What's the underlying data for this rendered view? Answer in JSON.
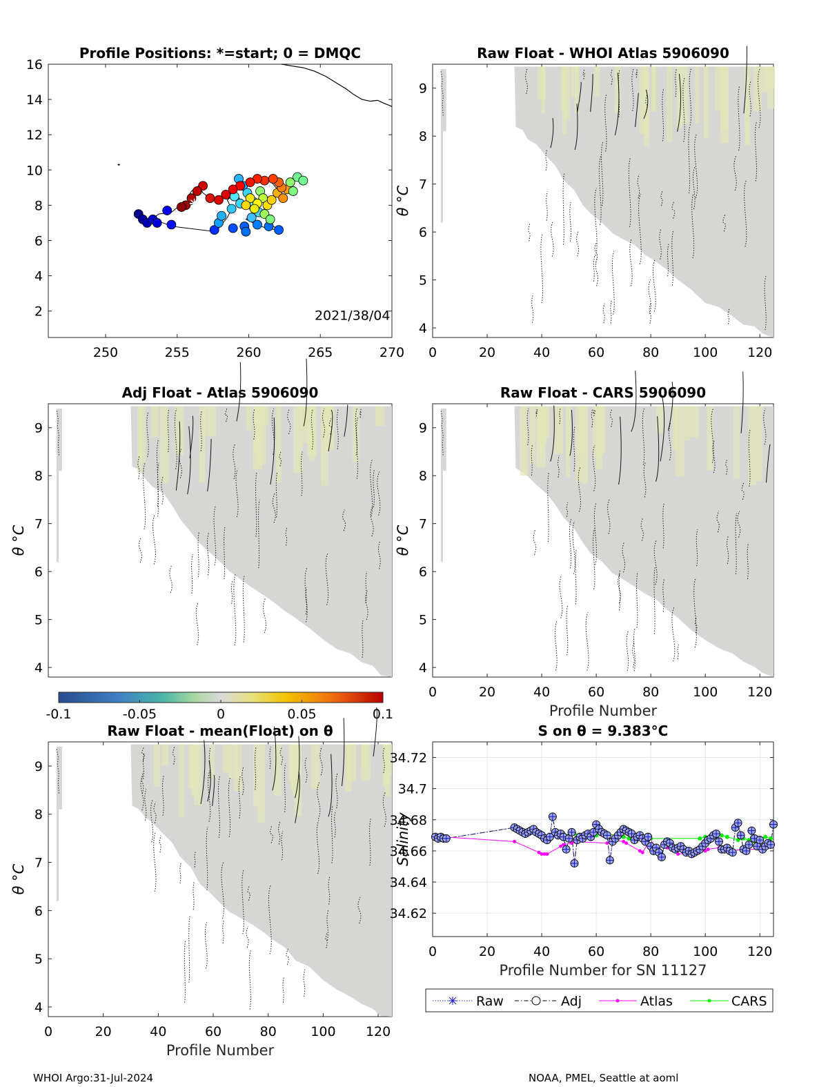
{
  "figure": {
    "footer_left": "WHOI Argo:31-Jul-2024",
    "footer_right": "NOAA, PMEL, Seattle at aoml"
  },
  "colorbar": {
    "min": -0.1,
    "max": 0.1,
    "ticks": [
      -0.1,
      -0.05,
      0,
      0.05,
      0.1
    ],
    "tick_labels": [
      "-0.1",
      "-0.05",
      "0",
      "0.05",
      "0.1"
    ]
  },
  "chart_data": [
    {
      "id": "positions",
      "type": "scatter",
      "title": "Profile Positions: *=start; 0 = DMQC",
      "xlim": [
        246,
        270
      ],
      "ylim": [
        0.5,
        16
      ],
      "x_ticks": [
        250,
        255,
        260,
        265,
        270
      ],
      "y_ticks": [
        2,
        4,
        6,
        8,
        10,
        12,
        14,
        16
      ],
      "annotation": "2021/38/04",
      "coastline": [
        [
          268.7,
          0.6
        ],
        [
          269,
          0.7
        ]
      ],
      "coastline_top": [
        [
          262.3,
          16
        ],
        [
          263.0,
          15.9
        ],
        [
          263.8,
          15.8
        ],
        [
          264.6,
          15.6
        ],
        [
          265.4,
          15.3
        ],
        [
          266.2,
          14.9
        ],
        [
          266.8,
          14.6
        ],
        [
          267.3,
          14.3
        ],
        [
          267.9,
          14.0
        ],
        [
          268.5,
          13.9
        ],
        [
          269.0,
          13.95
        ],
        [
          269.4,
          13.8
        ],
        [
          270,
          13.6
        ]
      ],
      "track": [
        [
          256.2,
          8.1
        ],
        [
          255.6,
          7.9
        ],
        [
          255.2,
          8.0
        ],
        [
          254.6,
          7.6
        ],
        [
          253.7,
          7.5
        ],
        [
          253.4,
          7.3
        ],
        [
          252.9,
          7.1
        ],
        [
          252.5,
          7.4
        ],
        [
          252.8,
          7.0
        ],
        [
          253.3,
          7.2
        ],
        [
          254.7,
          6.8
        ],
        [
          257.7,
          6.5
        ],
        [
          258.1,
          6.9
        ],
        [
          258.5,
          7.3
        ],
        [
          258.8,
          7.8
        ],
        [
          258.5,
          8.3
        ],
        [
          259.1,
          8.7
        ],
        [
          259.5,
          8.2
        ],
        [
          259.9,
          7.9
        ],
        [
          260.3,
          7.6
        ],
        [
          259.8,
          7.2
        ],
        [
          260.6,
          6.9
        ],
        [
          261.2,
          6.7
        ],
        [
          262.0,
          6.6
        ],
        [
          261.5,
          7.0
        ],
        [
          260.9,
          7.5
        ],
        [
          261.2,
          8.0
        ],
        [
          261.6,
          8.4
        ],
        [
          262.1,
          8.7
        ],
        [
          262.6,
          9.0
        ],
        [
          263.1,
          9.4
        ],
        [
          263.3,
          9.6
        ],
        [
          262.9,
          9.1
        ],
        [
          262.4,
          8.8
        ],
        [
          261.9,
          9.0
        ],
        [
          261.6,
          9.3
        ],
        [
          261.1,
          9.5
        ],
        [
          260.4,
          9.4
        ],
        [
          259.8,
          9.2
        ],
        [
          259.2,
          9.0
        ],
        [
          258.7,
          8.9
        ],
        [
          258.3,
          8.6
        ],
        [
          257.8,
          8.3
        ],
        [
          257.3,
          8.4
        ],
        [
          256.8,
          8.7
        ],
        [
          256.5,
          9.1
        ],
        [
          256.0,
          8.8
        ],
        [
          255.7,
          8.4
        ],
        [
          256.1,
          8.1
        ]
      ],
      "colored_points": [
        {
          "x": 252.3,
          "y": 7.5,
          "c": "#00008f"
        },
        {
          "x": 252.6,
          "y": 7.2,
          "c": "#0000a6"
        },
        {
          "x": 252.9,
          "y": 7.0,
          "c": "#0000bb"
        },
        {
          "x": 253.3,
          "y": 7.2,
          "c": "#0000cf"
        },
        {
          "x": 253.6,
          "y": 7.0,
          "c": "#0000dd"
        },
        {
          "x": 254.3,
          "y": 7.7,
          "c": "#0000ee"
        },
        {
          "x": 254.6,
          "y": 6.9,
          "c": "#0010ff"
        },
        {
          "x": 257.6,
          "y": 6.6,
          "c": "#0030ff"
        },
        {
          "x": 258.9,
          "y": 6.7,
          "c": "#0050ff"
        },
        {
          "x": 259.7,
          "y": 6.8,
          "c": "#0060ff"
        },
        {
          "x": 259.8,
          "y": 6.5,
          "c": "#0070ff"
        },
        {
          "x": 260.6,
          "y": 6.9,
          "c": "#0080ff"
        },
        {
          "x": 261.4,
          "y": 6.8,
          "c": "#0070ff"
        },
        {
          "x": 262.1,
          "y": 6.6,
          "c": "#0060ff"
        },
        {
          "x": 257.9,
          "y": 7.0,
          "c": "#10a0ff"
        },
        {
          "x": 258.1,
          "y": 7.4,
          "c": "#20b0ff"
        },
        {
          "x": 258.8,
          "y": 7.8,
          "c": "#30c8ff"
        },
        {
          "x": 259.4,
          "y": 8.1,
          "c": "#40d8ff"
        },
        {
          "x": 259.0,
          "y": 8.5,
          "c": "#50e8ff"
        },
        {
          "x": 259.3,
          "y": 9.5,
          "c": "#30b0ff"
        },
        {
          "x": 259.6,
          "y": 9.1,
          "c": "#20a0ff"
        },
        {
          "x": 259.9,
          "y": 8.7,
          "c": "#40d0ff"
        },
        {
          "x": 260.3,
          "y": 8.2,
          "c": "#60f0ff"
        },
        {
          "x": 260.7,
          "y": 7.6,
          "c": "#50d8ff"
        },
        {
          "x": 260.2,
          "y": 7.3,
          "c": "#40c0ff"
        },
        {
          "x": 260.8,
          "y": 8.8,
          "c": "#90ff70"
        },
        {
          "x": 261.0,
          "y": 8.4,
          "c": "#c0ff40"
        },
        {
          "x": 260.6,
          "y": 8.1,
          "c": "#ffff00"
        },
        {
          "x": 260.1,
          "y": 8.4,
          "c": "#ffe800"
        },
        {
          "x": 259.8,
          "y": 8.0,
          "c": "#ffd800"
        },
        {
          "x": 260.4,
          "y": 7.8,
          "c": "#f0f000"
        },
        {
          "x": 261.3,
          "y": 8.0,
          "c": "#ffe000"
        },
        {
          "x": 261.6,
          "y": 8.3,
          "c": "#ffd000"
        },
        {
          "x": 261.1,
          "y": 7.5,
          "c": "#a0ff60"
        },
        {
          "x": 261.5,
          "y": 7.2,
          "c": "#80ff80"
        },
        {
          "x": 262.0,
          "y": 8.7,
          "c": "#ffb000"
        },
        {
          "x": 262.4,
          "y": 8.4,
          "c": "#ff9000"
        },
        {
          "x": 262.7,
          "y": 8.9,
          "c": "#ffa000"
        },
        {
          "x": 262.3,
          "y": 9.0,
          "c": "#ff8000"
        },
        {
          "x": 262.9,
          "y": 9.3,
          "c": "#90ff70"
        },
        {
          "x": 263.4,
          "y": 9.6,
          "c": "#70ff90"
        },
        {
          "x": 263.1,
          "y": 8.8,
          "c": "#80ff80"
        },
        {
          "x": 262.1,
          "y": 9.3,
          "c": "#ff6000"
        },
        {
          "x": 261.7,
          "y": 9.5,
          "c": "#ff4000"
        },
        {
          "x": 261.1,
          "y": 9.4,
          "c": "#ff3000"
        },
        {
          "x": 260.6,
          "y": 9.5,
          "c": "#ff2000"
        },
        {
          "x": 260.1,
          "y": 9.3,
          "c": "#ff1000"
        },
        {
          "x": 259.4,
          "y": 9.1,
          "c": "#ff0000"
        },
        {
          "x": 258.9,
          "y": 8.9,
          "c": "#ee0000"
        },
        {
          "x": 258.4,
          "y": 8.6,
          "c": "#e00000"
        },
        {
          "x": 257.9,
          "y": 8.3,
          "c": "#dd0000"
        },
        {
          "x": 257.3,
          "y": 8.4,
          "c": "#e01000"
        },
        {
          "x": 256.8,
          "y": 9.1,
          "c": "#d00000"
        },
        {
          "x": 256.4,
          "y": 8.8,
          "c": "#c00000"
        },
        {
          "x": 256.0,
          "y": 8.4,
          "c": "#b00000"
        },
        {
          "x": 255.6,
          "y": 8.0,
          "c": "#a00000"
        },
        {
          "x": 255.3,
          "y": 7.9,
          "c": "#900000"
        },
        {
          "x": 263.8,
          "y": 9.4,
          "c": "#70ff90"
        }
      ],
      "start": [
        256.2,
        8.1
      ]
    },
    {
      "id": "raw_whoi",
      "type": "heatmap",
      "title": "Raw Float - WHOI Atlas  5906090",
      "ylabel": "θ °C",
      "xlabel": "",
      "xlim": [
        0,
        125
      ],
      "ylim": [
        3.8,
        9.5
      ],
      "x_ticks": [
        0,
        20,
        40,
        60,
        80,
        100,
        120
      ],
      "y_ticks": [
        4,
        5,
        6,
        7,
        8,
        9
      ]
    },
    {
      "id": "adj_atlas",
      "type": "heatmap",
      "title": "Adj Float - Atlas  5906090",
      "ylabel": "θ °C",
      "xlabel": "",
      "xlim": [
        0,
        125
      ],
      "ylim": [
        3.8,
        9.5
      ],
      "x_ticks": [],
      "y_ticks": [
        4,
        5,
        6,
        7,
        8,
        9
      ]
    },
    {
      "id": "raw_cars",
      "type": "heatmap",
      "title": "Raw Float - CARS  5906090",
      "ylabel": "θ °C",
      "xlabel": "Profile Number",
      "xlim": [
        0,
        125
      ],
      "ylim": [
        3.8,
        9.5
      ],
      "x_ticks": [
        0,
        20,
        40,
        60,
        80,
        100,
        120
      ],
      "y_ticks": [
        4,
        5,
        6,
        7,
        8,
        9
      ]
    },
    {
      "id": "raw_mean",
      "type": "heatmap",
      "title": "Raw Float - mean(Float) on θ",
      "ylabel": "θ °C",
      "xlabel": "Profile Number",
      "xlim": [
        0,
        125
      ],
      "ylim": [
        3.8,
        9.5
      ],
      "x_ticks": [
        0,
        20,
        40,
        60,
        80,
        100,
        120
      ],
      "y_ticks": [
        4,
        5,
        6,
        7,
        8,
        9
      ]
    },
    {
      "id": "salinity",
      "type": "line",
      "title": "S on θ = 9.383°C",
      "xlabel": "Profile Number for SN 11127",
      "ylabel": "Salinity",
      "xlim": [
        0,
        125
      ],
      "ylim": [
        34.605,
        34.73
      ],
      "x_ticks": [
        0,
        20,
        40,
        60,
        80,
        100,
        120
      ],
      "y_ticks": [
        34.62,
        34.64,
        34.66,
        34.68,
        34.7,
        34.72
      ],
      "y_tick_labels": [
        "34.62",
        "34.64",
        "34.66",
        "34.68",
        "34.7",
        "34.72"
      ],
      "legend": [
        "Raw",
        "Adj",
        "Atlas",
        "CARS"
      ],
      "x": [
        1,
        2,
        3,
        4,
        5,
        30,
        31,
        32,
        33,
        34,
        35,
        36,
        37,
        38,
        39,
        40,
        41,
        42,
        43,
        44,
        45,
        46,
        47,
        48,
        49,
        50,
        51,
        52,
        53,
        54,
        55,
        56,
        57,
        58,
        59,
        60,
        61,
        62,
        63,
        64,
        65,
        66,
        67,
        68,
        69,
        70,
        71,
        72,
        73,
        74,
        75,
        76,
        77,
        78,
        79,
        80,
        81,
        82,
        83,
        84,
        85,
        86,
        87,
        88,
        89,
        90,
        91,
        92,
        93,
        94,
        95,
        96,
        97,
        98,
        99,
        100,
        101,
        102,
        103,
        104,
        105,
        106,
        107,
        108,
        109,
        110,
        111,
        112,
        113,
        114,
        115,
        116,
        117,
        118,
        119,
        120,
        121,
        122,
        123,
        124,
        125
      ],
      "series": [
        {
          "name": "Raw",
          "values": [
            34.669,
            34.668,
            34.669,
            34.668,
            34.668,
            34.675,
            34.674,
            34.673,
            34.672,
            34.671,
            34.672,
            34.673,
            34.674,
            34.672,
            34.671,
            34.67,
            34.668,
            34.667,
            34.669,
            34.682,
            34.672,
            34.67,
            34.671,
            34.669,
            34.661,
            34.668,
            34.672,
            34.652,
            34.667,
            34.669,
            34.668,
            34.67,
            34.671,
            34.669,
            34.672,
            34.677,
            34.674,
            34.672,
            34.671,
            34.67,
            34.654,
            34.666,
            34.668,
            34.67,
            34.672,
            34.674,
            34.673,
            34.672,
            34.671,
            34.667,
            34.669,
            34.67,
            34.668,
            34.666,
            34.669,
            34.663,
            34.66,
            34.662,
            34.659,
            34.656,
            34.664,
            34.666,
            34.665,
            34.662,
            34.661,
            34.662,
            34.663,
            34.661,
            34.659,
            34.66,
            34.658,
            34.659,
            34.66,
            34.661,
            34.663,
            34.665,
            34.667,
            34.668,
            34.67,
            34.671,
            34.666,
            34.661,
            34.661,
            34.662,
            34.66,
            34.659,
            34.675,
            34.678,
            34.67,
            34.661,
            34.66,
            34.664,
            34.673,
            34.668,
            34.663,
            34.667,
            34.661,
            34.663,
            34.665,
            34.664,
            34.677
          ]
        },
        {
          "name": "Adj",
          "values": [
            34.669,
            34.668,
            34.669,
            34.668,
            34.668,
            34.675,
            34.674,
            34.673,
            34.672,
            34.671,
            34.672,
            34.673,
            34.674,
            34.672,
            34.671,
            34.67,
            34.668,
            34.667,
            34.669,
            34.682,
            34.672,
            34.67,
            34.671,
            34.669,
            34.661,
            34.668,
            34.672,
            34.652,
            34.667,
            34.669,
            34.668,
            34.67,
            34.671,
            34.669,
            34.672,
            34.677,
            34.674,
            34.672,
            34.671,
            34.67,
            34.654,
            34.666,
            34.668,
            34.67,
            34.672,
            34.674,
            34.673,
            34.672,
            34.671,
            34.667,
            34.669,
            34.67,
            34.668,
            34.666,
            34.669,
            34.663,
            34.66,
            34.662,
            34.659,
            34.656,
            34.664,
            34.666,
            34.665,
            34.662,
            34.661,
            34.662,
            34.663,
            34.661,
            34.659,
            34.66,
            34.658,
            34.659,
            34.66,
            34.661,
            34.663,
            34.665,
            34.667,
            34.668,
            34.67,
            34.671,
            34.666,
            34.661,
            34.661,
            34.662,
            34.66,
            34.659,
            34.675,
            34.678,
            34.67,
            34.661,
            34.66,
            34.664,
            34.673,
            34.668,
            34.663,
            34.667,
            34.661,
            34.663,
            34.665,
            34.664,
            34.677
          ]
        },
        {
          "name": "Atlas",
          "x": [
            4,
            30,
            39,
            40,
            41,
            42,
            47,
            48,
            51,
            52,
            64,
            66,
            70,
            71,
            76,
            77,
            80,
            81,
            86,
            90,
            95,
            100,
            101,
            105,
            108,
            115,
            120,
            122
          ],
          "values": [
            34.669,
            34.666,
            34.659,
            34.658,
            34.658,
            34.658,
            34.663,
            34.664,
            34.665,
            34.666,
            34.665,
            34.667,
            34.666,
            34.665,
            34.66,
            34.659,
            34.668,
            34.663,
            34.662,
            34.658,
            34.659,
            34.66,
            34.661,
            34.662,
            34.66,
            34.661,
            34.661,
            34.662
          ]
        },
        {
          "name": "CARS",
          "x": [
            48,
            50,
            52,
            60,
            62,
            64,
            70,
            72,
            74,
            76,
            78,
            80,
            98,
            100,
            102,
            104,
            106,
            108,
            112,
            114,
            116,
            118,
            120,
            122,
            124
          ],
          "values": [
            34.671,
            34.67,
            34.671,
            34.67,
            34.671,
            34.671,
            34.669,
            34.668,
            34.669,
            34.67,
            34.669,
            34.668,
            34.668,
            34.669,
            34.67,
            34.67,
            34.67,
            34.669,
            34.667,
            34.668,
            34.667,
            34.666,
            34.668,
            34.669,
            34.668
          ]
        }
      ]
    }
  ]
}
